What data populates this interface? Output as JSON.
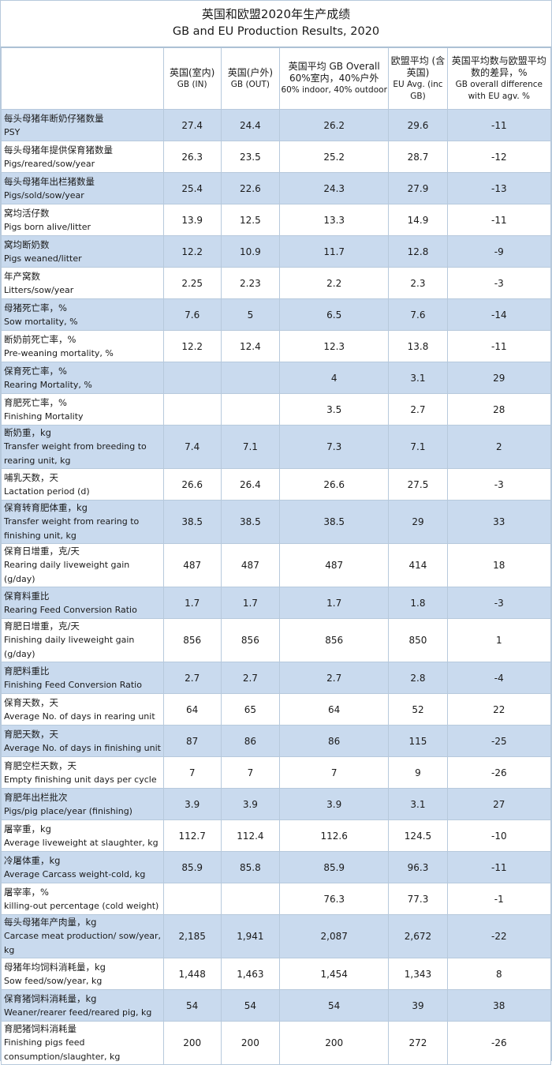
{
  "title": {
    "cn": "英国和欧盟2020年生产成绩",
    "en": "GB and EU Production Results, 2020"
  },
  "headers": [
    {
      "cn": "",
      "en": ""
    },
    {
      "cn": "英国(室内)",
      "en": "GB (IN)"
    },
    {
      "cn": "英国(户外)",
      "en": "GB (OUT)"
    },
    {
      "cn": "英国平均 GB Overall 60%室内，40%户外",
      "en": "60% indoor, 40% outdoor"
    },
    {
      "cn": "欧盟平均 (含英国)",
      "en": "EU Avg. (inc GB)"
    },
    {
      "cn": "英国平均数与欧盟平均数的差异，%",
      "en": "GB overall difference with EU agv. %"
    }
  ],
  "rows": [
    {
      "cn": "每头母猪年断奶仔猪数量",
      "en": "PSY",
      "v": [
        "27.4",
        "24.4",
        "26.2",
        "29.6",
        "-11"
      ]
    },
    {
      "cn": "每头母猪年提供保育猪数量",
      "en": "Pigs/reared/sow/year",
      "v": [
        "26.3",
        "23.5",
        "25.2",
        "28.7",
        "-12"
      ]
    },
    {
      "cn": "每头母猪年出栏猪数量",
      "en": "Pigs/sold/sow/year",
      "v": [
        "25.4",
        "22.6",
        "24.3",
        "27.9",
        "-13"
      ]
    },
    {
      "cn": "窝均活仔数",
      "en": "Pigs born alive/litter",
      "v": [
        "13.9",
        "12.5",
        "13.3",
        "14.9",
        "-11"
      ]
    },
    {
      "cn": "窝均断奶数",
      "en": "Pigs weaned/litter",
      "v": [
        "12.2",
        "10.9",
        "11.7",
        "12.8",
        "-9"
      ]
    },
    {
      "cn": "年产窝数",
      "en": "Litters/sow/year",
      "v": [
        "2.25",
        "2.23",
        "2.2",
        "2.3",
        "-3"
      ]
    },
    {
      "cn": "母猪死亡率，%",
      "en": "Sow mortality, %",
      "v": [
        "7.6",
        "5",
        "6.5",
        "7.6",
        "-14"
      ]
    },
    {
      "cn": "断奶前死亡率，%",
      "en": "Pre-weaning mortality, %",
      "v": [
        "12.2",
        "12.4",
        "12.3",
        "13.8",
        "-11"
      ]
    },
    {
      "cn": "保育死亡率，%",
      "en": "Rearing Mortality, %",
      "v": [
        "",
        "",
        "4",
        "3.1",
        "29"
      ]
    },
    {
      "cn": "育肥死亡率，%",
      "en": "Finishing Mortality",
      "v": [
        "",
        "",
        "3.5",
        "2.7",
        "28"
      ]
    },
    {
      "cn": "断奶重，kg",
      "en": "Transfer weight from breeding to rearing unit, kg",
      "v": [
        "7.4",
        "7.1",
        "7.3",
        "7.1",
        "2"
      ]
    },
    {
      "cn": "哺乳天数，天",
      "en": "Lactation period (d)",
      "v": [
        "26.6",
        "26.4",
        "26.6",
        "27.5",
        "-3"
      ]
    },
    {
      "cn": "保育转育肥体重，kg",
      "en": "Transfer weight from rearing to finishing unit, kg",
      "v": [
        "38.5",
        "38.5",
        "38.5",
        "29",
        "33"
      ]
    },
    {
      "cn": "保育日增重，克/天",
      "en": "Rearing daily liveweight gain (g/day)",
      "v": [
        "487",
        "487",
        "487",
        "414",
        "18"
      ]
    },
    {
      "cn": "保育料重比",
      "en": "Rearing Feed Conversion Ratio",
      "v": [
        "1.7",
        "1.7",
        "1.7",
        "1.8",
        "-3"
      ]
    },
    {
      "cn": "育肥日增重，克/天",
      "en": "Finishing daily liveweight gain (g/day)",
      "v": [
        "856",
        "856",
        "856",
        "850",
        "1"
      ]
    },
    {
      "cn": "育肥料重比",
      "en": "Finishing Feed Conversion Ratio",
      "v": [
        "2.7",
        "2.7",
        "2.7",
        "2.8",
        "-4"
      ]
    },
    {
      "cn": "保育天数，天",
      "en": "Average No. of days in rearing unit",
      "v": [
        "64",
        "65",
        "64",
        "52",
        "22"
      ]
    },
    {
      "cn": "育肥天数，天",
      "en": "Average No. of days in finishing unit",
      "v": [
        "87",
        "86",
        "86",
        "115",
        "-25"
      ]
    },
    {
      "cn": "育肥空栏天数，天",
      "en": "Empty finishing unit days per cycle",
      "v": [
        "7",
        "7",
        "7",
        "9",
        "-26"
      ]
    },
    {
      "cn": "育肥年出栏批次",
      "en": "Pigs/pig place/year (finishing)",
      "v": [
        "3.9",
        "3.9",
        "3.9",
        "3.1",
        "27"
      ]
    },
    {
      "cn": "屠宰重，kg",
      "en": "Average liveweight at slaughter, kg",
      "v": [
        "112.7",
        "112.4",
        "112.6",
        "124.5",
        "-10"
      ]
    },
    {
      "cn": "冷屠体重，kg",
      "en": "Average Carcass weight-cold, kg",
      "v": [
        "85.9",
        "85.8",
        "85.9",
        "96.3",
        "-11"
      ]
    },
    {
      "cn": "屠宰率，%",
      "en": "killing-out percentage (cold weight)",
      "v": [
        "",
        "",
        "76.3",
        "77.3",
        "-1"
      ]
    },
    {
      "cn": "每头母猪年产肉量，kg",
      "en": "Carcase meat production/ sow/year, kg",
      "v": [
        "2,185",
        "1,941",
        "2,087",
        "2,672",
        "-22"
      ]
    },
    {
      "cn": "母猪年均饲料消耗量，kg",
      "en": "Sow feed/sow/year, kg",
      "v": [
        "1,448",
        "1,463",
        "1,454",
        "1,343",
        "8"
      ]
    },
    {
      "cn": "保育猪饲料消耗量，kg",
      "en": "Weaner/rearer feed/reared pig, kg",
      "v": [
        "54",
        "54",
        "54",
        "39",
        "38"
      ]
    },
    {
      "cn": "育肥猪饲料消耗量",
      "en": "Finishing pigs feed consumption/slaughter, kg",
      "v": [
        "200",
        "200",
        "200",
        "272",
        "-26"
      ]
    }
  ]
}
